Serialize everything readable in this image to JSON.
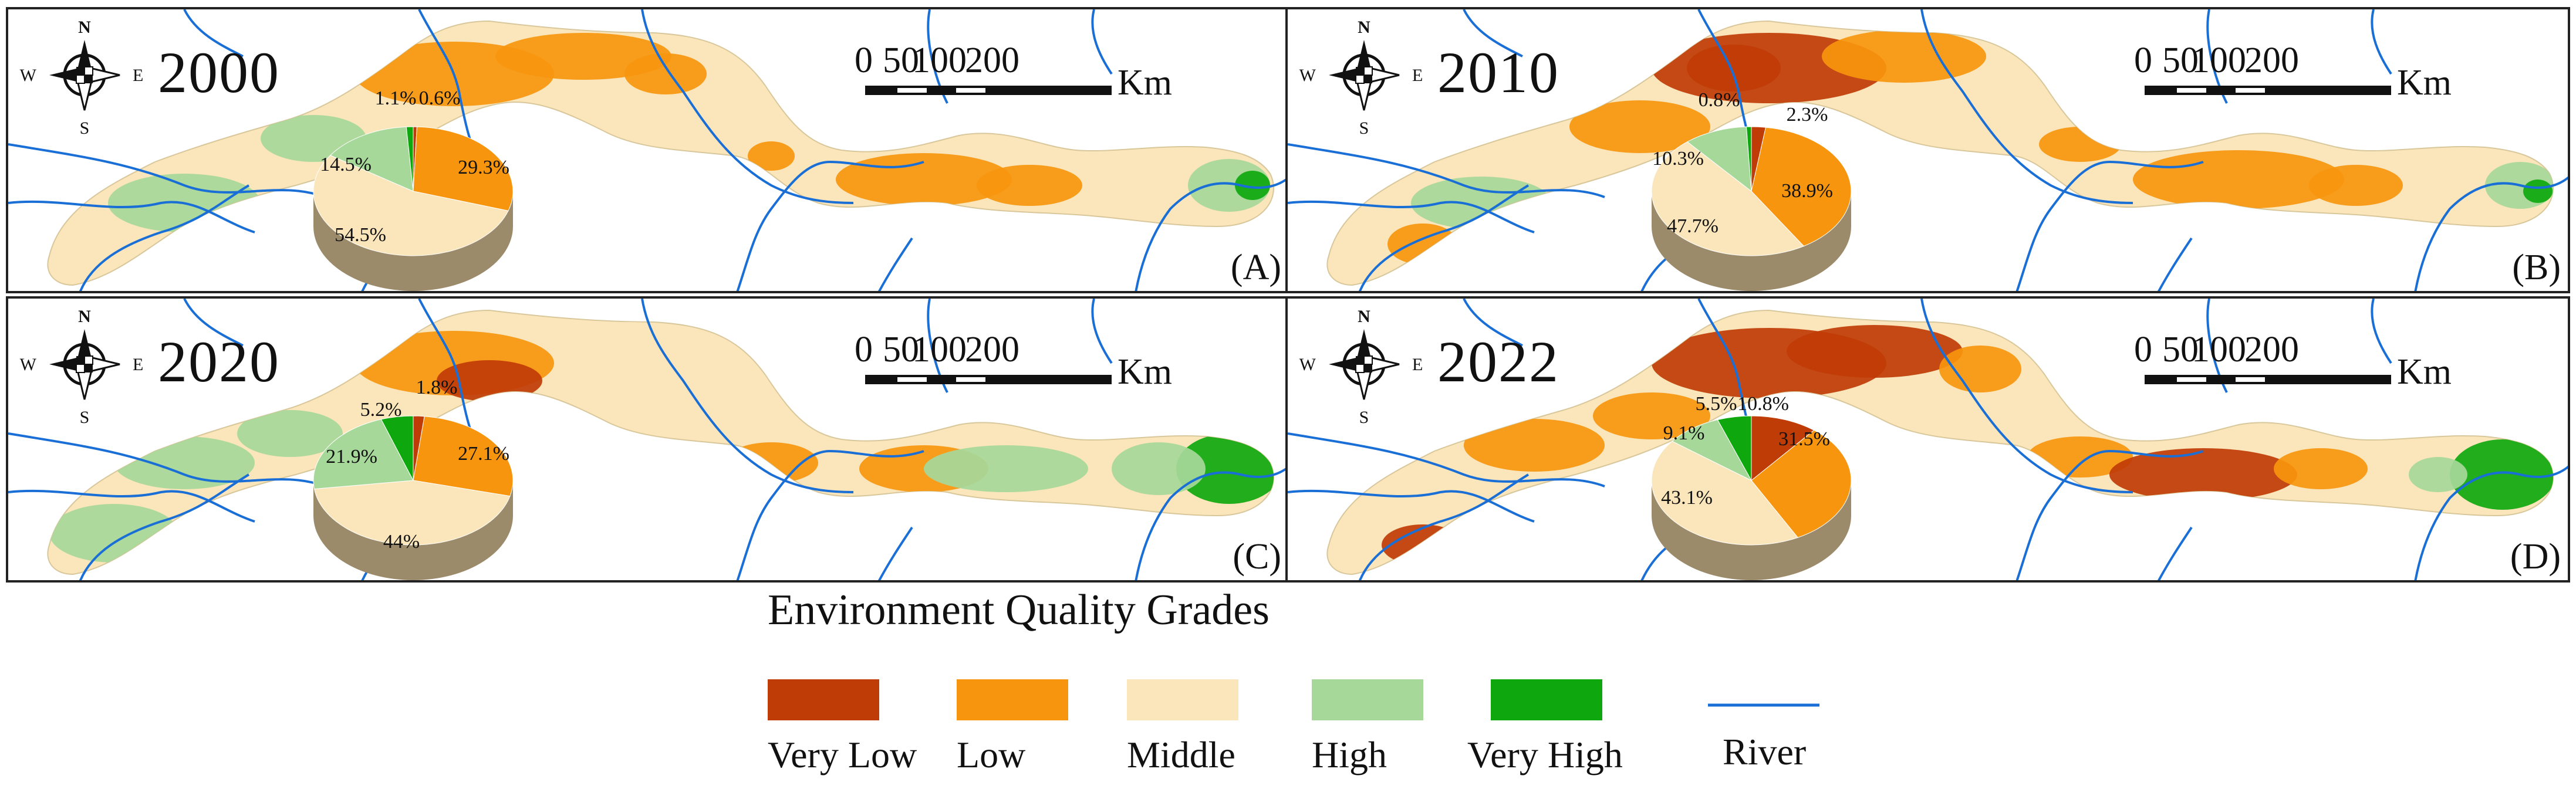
{
  "colors": {
    "very_low": "#c03c06",
    "low": "#f7960e",
    "middle": "#fbe6bb",
    "high": "#a6d89a",
    "very_high": "#0ea80e",
    "river": "#1a6fd6",
    "pie_side": "#9c8b6a"
  },
  "compass": {
    "n": "N",
    "s": "S",
    "e": "E",
    "w": "W"
  },
  "scalebar": {
    "ticks": [
      "0",
      "50",
      "100",
      "200"
    ],
    "unit": "Km"
  },
  "panels": [
    {
      "year": "2000",
      "label": "(A)",
      "slices": [
        {
          "grade": "very_low",
          "value": 0.6,
          "text": "0.6%"
        },
        {
          "grade": "low",
          "value": 29.3,
          "text": "29.3%"
        },
        {
          "grade": "middle",
          "value": 54.5,
          "text": "54.5%"
        },
        {
          "grade": "high",
          "value": 14.5,
          "text": "14.5%"
        },
        {
          "grade": "very_high",
          "value": 1.1,
          "text": "1.1%"
        }
      ]
    },
    {
      "year": "2010",
      "label": "(B)",
      "slices": [
        {
          "grade": "very_low",
          "value": 2.3,
          "text": "2.3%"
        },
        {
          "grade": "low",
          "value": 38.9,
          "text": "38.9%"
        },
        {
          "grade": "middle",
          "value": 47.7,
          "text": "47.7%"
        },
        {
          "grade": "high",
          "value": 10.3,
          "text": "10.3%"
        },
        {
          "grade": "very_high",
          "value": 0.8,
          "text": "0.8%"
        }
      ]
    },
    {
      "year": "2020",
      "label": "(C)",
      "slices": [
        {
          "grade": "very_low",
          "value": 1.8,
          "text": "1.8%"
        },
        {
          "grade": "low",
          "value": 27.1,
          "text": "27.1%"
        },
        {
          "grade": "middle",
          "value": 44,
          "text": "44%"
        },
        {
          "grade": "high",
          "value": 21.9,
          "text": "21.9%"
        },
        {
          "grade": "very_high",
          "value": 5.2,
          "text": "5.2%"
        }
      ]
    },
    {
      "year": "2022",
      "label": "(D)",
      "slices": [
        {
          "grade": "very_low",
          "value": 10.8,
          "text": "10.8%"
        },
        {
          "grade": "low",
          "value": 31.5,
          "text": "31.5%"
        },
        {
          "grade": "middle",
          "value": 43.1,
          "text": "43.1%"
        },
        {
          "grade": "high",
          "value": 9.1,
          "text": "9.1%"
        },
        {
          "grade": "very_high",
          "value": 5.5,
          "text": "5.5%"
        }
      ]
    }
  ],
  "legend": {
    "title": "Environment Quality Grades",
    "items": [
      {
        "key": "very_low",
        "label": "Very Low"
      },
      {
        "key": "low",
        "label": "Low"
      },
      {
        "key": "middle",
        "label": "Middle"
      },
      {
        "key": "high",
        "label": "High"
      },
      {
        "key": "very_high",
        "label": "Very High"
      }
    ],
    "river_label": "River"
  }
}
